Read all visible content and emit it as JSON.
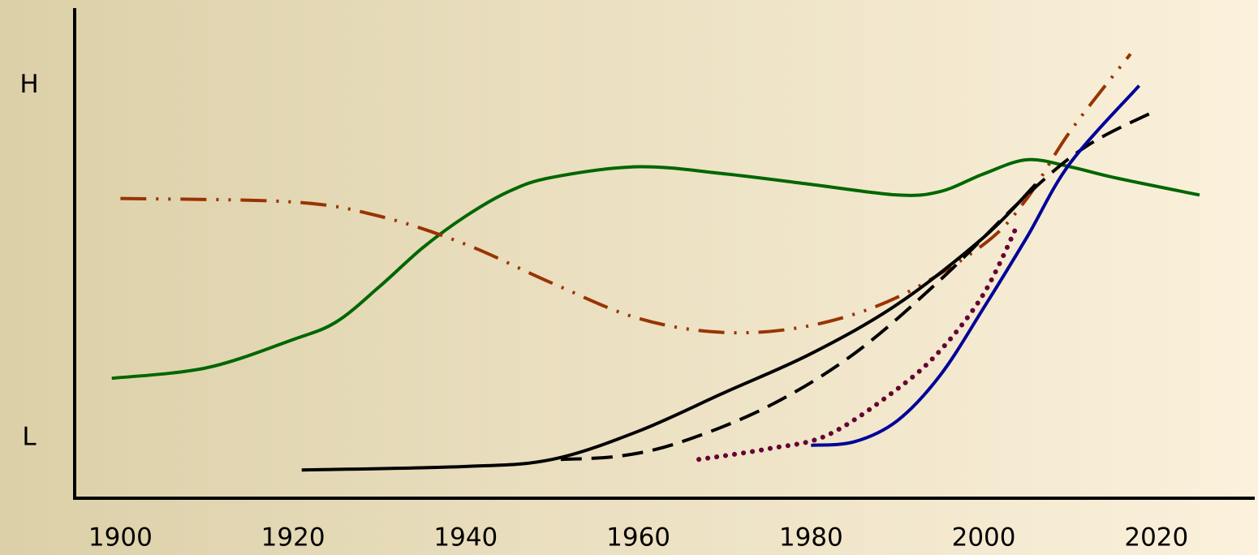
{
  "chart_data": {
    "type": "line",
    "xlim": [
      1894.7,
      2031.3
    ],
    "xticks": [
      1900,
      1920,
      1940,
      1960,
      1980,
      2000,
      2020
    ],
    "ylim": [
      -0.17,
      1.22
    ],
    "yticks": [
      {
        "value": 0,
        "label": "L"
      },
      {
        "value": 1,
        "label": "H"
      }
    ],
    "grid": false,
    "series": [
      {
        "color": "#006600",
        "dash": "solid",
        "x": [
          1899,
          1910,
          1920,
          1925,
          1930,
          1935,
          1940,
          1945,
          1950,
          1960,
          1970,
          1980,
          1990,
          1995,
          2000,
          2005,
          2010,
          2015,
          2025
        ],
        "values": [
          0.17,
          0.2,
          0.28,
          0.33,
          0.43,
          0.54,
          0.63,
          0.7,
          0.74,
          0.77,
          0.75,
          0.72,
          0.69,
          0.7,
          0.75,
          0.79,
          0.77,
          0.74,
          0.69
        ]
      },
      {
        "color": "#993300",
        "dash": "dashdotdot",
        "x": [
          1900,
          1920,
          1930,
          1940,
          1950,
          1960,
          1970,
          1980,
          1990,
          2000,
          2005,
          2010,
          2017
        ],
        "values": [
          0.68,
          0.67,
          0.63,
          0.55,
          0.44,
          0.34,
          0.3,
          0.32,
          0.4,
          0.55,
          0.68,
          0.87,
          1.09
        ]
      },
      {
        "color": "#000000",
        "dash": "solid",
        "x": [
          1921,
          1940,
          1950,
          1960,
          1970,
          1980,
          1990,
          2000,
          2006
        ],
        "values": [
          -0.09,
          -0.08,
          -0.06,
          0.02,
          0.13,
          0.24,
          0.38,
          0.57,
          0.72
        ]
      },
      {
        "color": "#000000",
        "dash": "dashed",
        "x": [
          1951,
          1958,
          1965,
          1975,
          1985,
          1995,
          2005,
          2012,
          2020
        ],
        "values": [
          -0.06,
          -0.05,
          -0.01,
          0.09,
          0.24,
          0.45,
          0.69,
          0.83,
          0.93
        ]
      },
      {
        "color": "#660033",
        "dash": "dotted",
        "x": [
          1967,
          1975,
          1982,
          1990,
          1995,
          2000,
          2004
        ],
        "values": [
          -0.06,
          -0.03,
          0.01,
          0.14,
          0.25,
          0.41,
          0.61
        ]
      },
      {
        "color": "#000099",
        "dash": "solid",
        "x": [
          1980,
          1985,
          1990,
          1995,
          2000,
          2005,
          2010,
          2018
        ],
        "values": [
          -0.02,
          -0.01,
          0.05,
          0.18,
          0.37,
          0.57,
          0.78,
          1.0
        ]
      }
    ]
  }
}
